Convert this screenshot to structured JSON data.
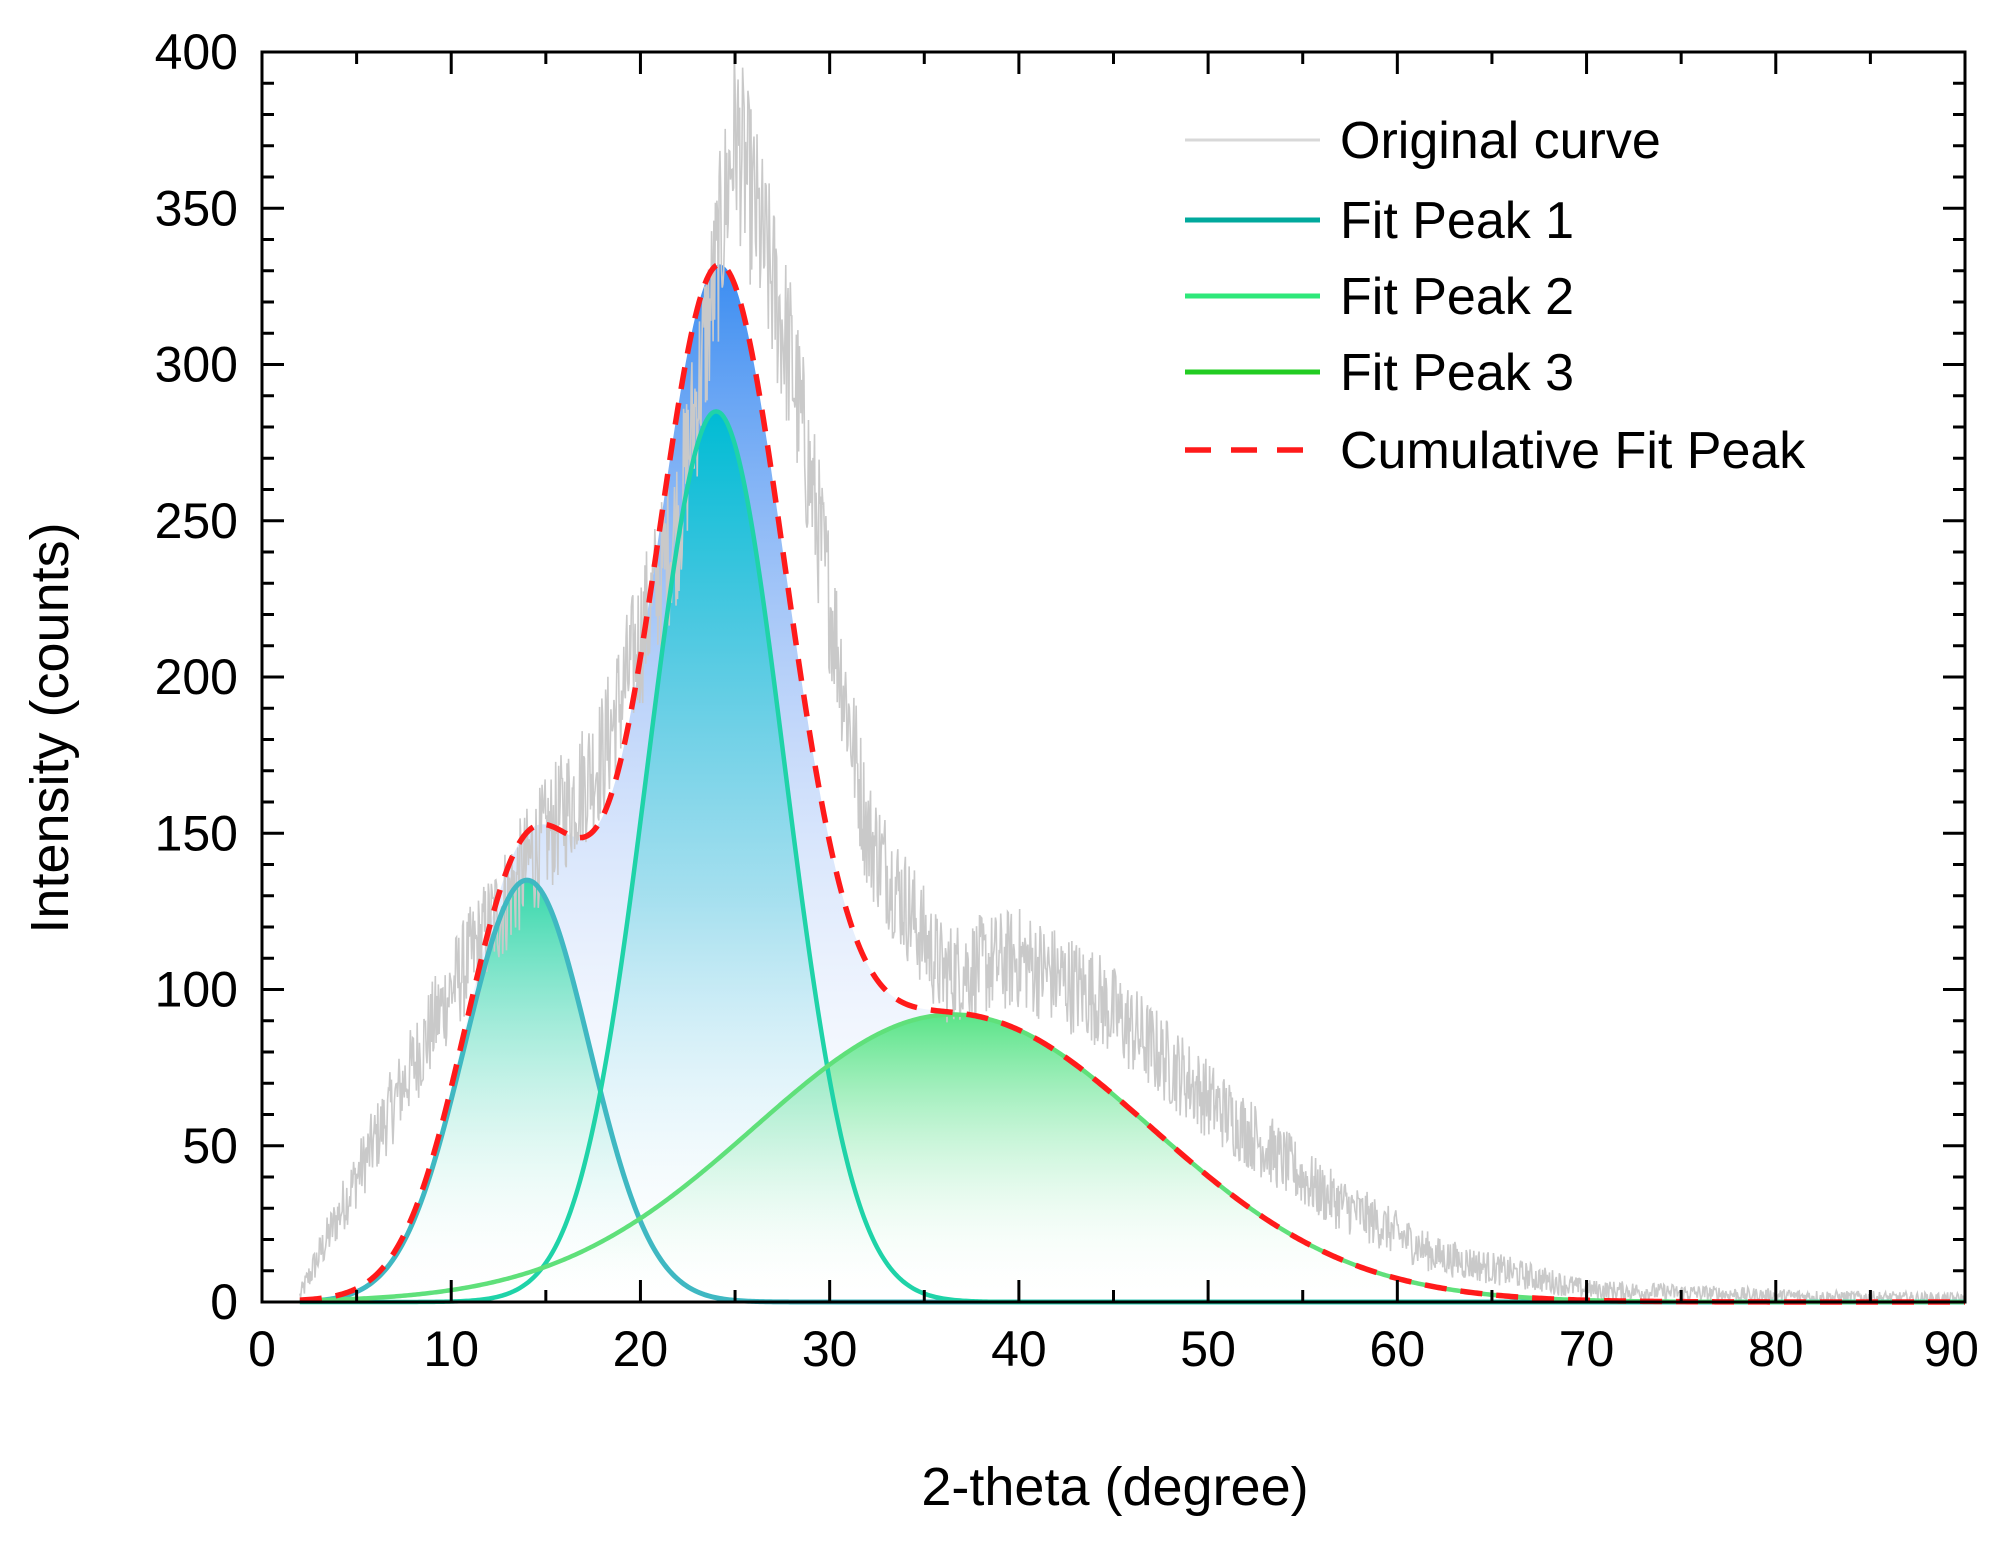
{
  "chart_data": {
    "type": "line",
    "title": "",
    "xlabel": "2-theta (degree)",
    "ylabel": "Intensity (counts)",
    "xlim": [
      0,
      90
    ],
    "ylim": [
      0,
      400
    ],
    "x_ticks": [
      0,
      10,
      20,
      30,
      40,
      50,
      60,
      70,
      80,
      90
    ],
    "y_ticks": [
      0,
      50,
      100,
      150,
      200,
      250,
      300,
      350,
      400
    ],
    "grid": false,
    "legend_position": "top-right",
    "series": [
      {
        "name": "Original curve",
        "kind": "noisy-data",
        "color": "#c8c8c8",
        "x_range": [
          2,
          90
        ],
        "description_values": {
          "x": [
            2,
            5,
            10,
            14,
            18,
            22,
            24,
            25,
            28,
            32,
            36,
            40,
            44,
            50,
            56,
            62,
            70,
            80,
            90
          ],
          "y": [
            2,
            40,
            100,
            140,
            175,
            250,
            330,
            375,
            300,
            150,
            105,
            110,
            98,
            65,
            35,
            15,
            4,
            2,
            1
          ]
        }
      },
      {
        "name": "Fit Peak 1",
        "kind": "gaussian",
        "color": "#00a99d",
        "center": 14,
        "amplitude": 135,
        "sigma": 3.3,
        "x_range": [
          2,
          90
        ]
      },
      {
        "name": "Fit Peak 2",
        "kind": "gaussian",
        "color": "#2ee89a",
        "center": 24,
        "amplitude": 285,
        "sigma": 3.6,
        "x_range": [
          2,
          90
        ]
      },
      {
        "name": "Fit Peak 3",
        "kind": "gaussian",
        "color": "#22cc33",
        "center": 36.5,
        "amplitude": 92,
        "sigma": 10.5,
        "x_range": [
          2,
          90
        ]
      },
      {
        "name": "Cumulative Fit Peak",
        "kind": "sum",
        "color": "#ff1a1a",
        "dashed": true,
        "x_range": [
          2,
          90
        ]
      }
    ]
  },
  "legend": {
    "items": [
      {
        "label": "Original curve",
        "color": "#d3d3d3",
        "dashed": false
      },
      {
        "label": "Fit Peak 1",
        "color": "#00a99d",
        "dashed": false
      },
      {
        "label": "Fit Peak 2",
        "color": "#2ee89a",
        "dashed": false
      },
      {
        "label": "Fit Peak 3",
        "color": "#22cc33",
        "dashed": false
      },
      {
        "label": "Cumulative Fit Peak",
        "color": "#ff1a1a",
        "dashed": true
      }
    ]
  }
}
